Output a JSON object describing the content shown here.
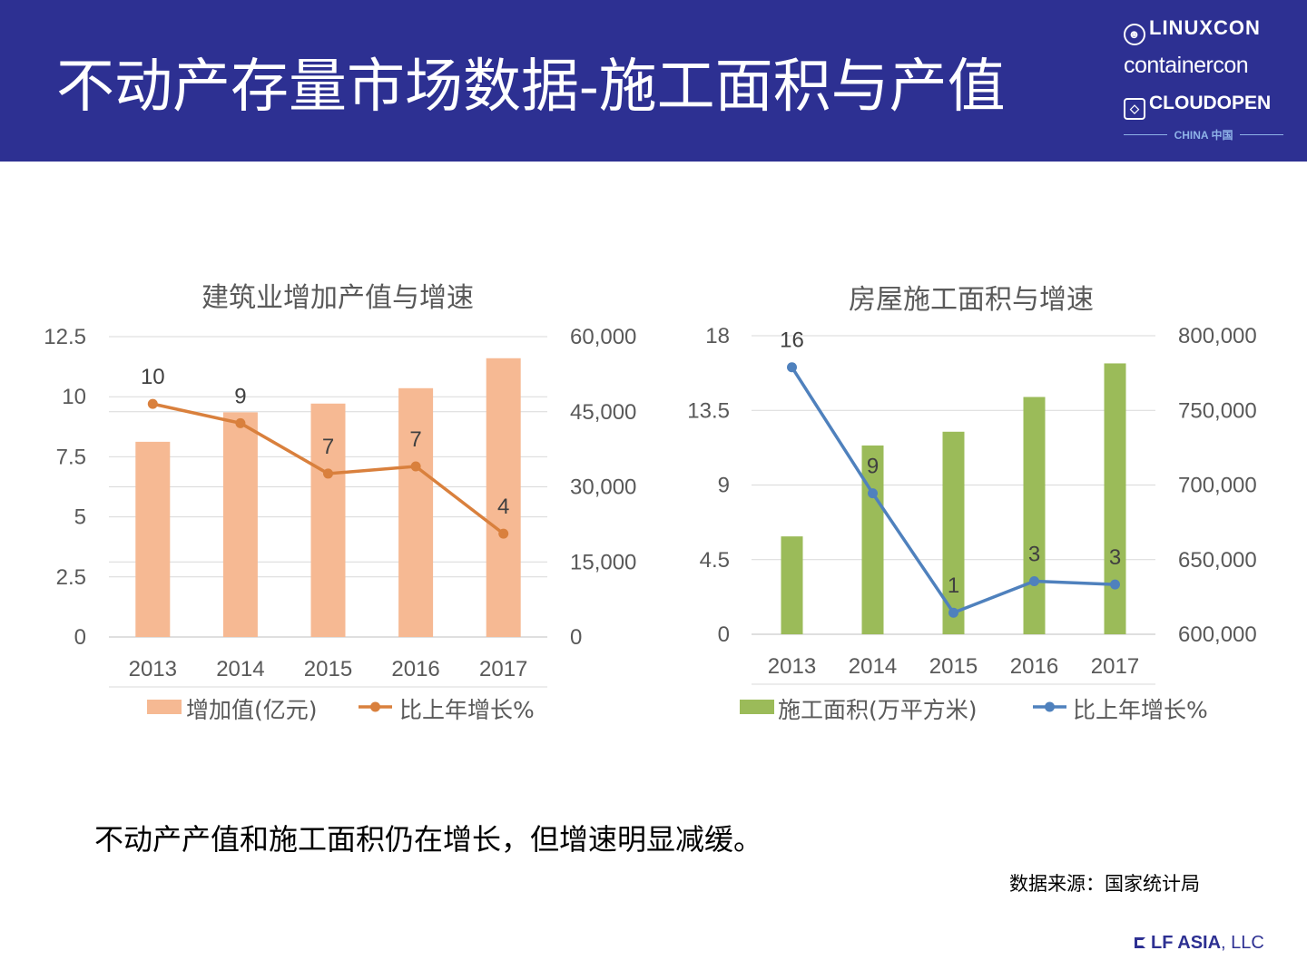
{
  "header": {
    "title": "不动产存量市场数据-施工面积与产值",
    "logos": {
      "linuxcon": "LINUXCON",
      "containercon": "containercon",
      "cloudopen": "CLOUDOPEN",
      "china": "CHINA 中国"
    }
  },
  "caption": "不动产产值和施工面积仍在增长，但增速明显减缓。",
  "source": "数据来源：国家统计局",
  "footer": {
    "brand": "LF ASIA",
    "suffix": ", LLC"
  },
  "colors": {
    "header_bg": "#2d3092",
    "bar_left": "#f6b993",
    "line_left": "#d9803d",
    "bar_right": "#9bbb59",
    "line_right": "#4f81bd"
  },
  "chart_data": [
    {
      "type": "bar+line",
      "title": "建筑业增加产值与增速",
      "categories": [
        "2013",
        "2014",
        "2015",
        "2016",
        "2017"
      ],
      "series": [
        {
          "name": "增加值(亿元)",
          "kind": "bar",
          "axis": "right",
          "values": [
            38995,
            44880,
            46627,
            49703,
            55689
          ]
        },
        {
          "name": "比上年增长%",
          "kind": "line",
          "axis": "left",
          "values": [
            9.7,
            8.9,
            6.8,
            7.1,
            4.3
          ],
          "labels": [
            "10",
            "9",
            "7",
            "7",
            "4"
          ]
        }
      ],
      "y_left": {
        "min": 0,
        "max": 12.5,
        "ticks": [
          "12.5",
          "10",
          "7.5",
          "5",
          "2.5",
          "0"
        ]
      },
      "y_right": {
        "min": 0,
        "max": 60000,
        "ticks": [
          "60,000",
          "45,000",
          "30,000",
          "15,000",
          "0"
        ]
      },
      "legend_position": "bottom"
    },
    {
      "type": "bar+line",
      "title": "房屋施工面积与增速",
      "categories": [
        "2013",
        "2014",
        "2015",
        "2016",
        "2017"
      ],
      "series": [
        {
          "name": "施工面积(万平方米)",
          "kind": "bar",
          "axis": "right",
          "values": [
            665572,
            726482,
            735693,
            758975,
            781484
          ]
        },
        {
          "name": "比上年增长%",
          "kind": "line",
          "axis": "left",
          "values": [
            16.1,
            8.5,
            1.3,
            3.2,
            3.0
          ],
          "labels": [
            "16",
            "9",
            "1",
            "3",
            "3"
          ]
        }
      ],
      "y_left": {
        "min": 0,
        "max": 18,
        "ticks": [
          "18",
          "13.5",
          "9",
          "4.5",
          "0"
        ]
      },
      "y_right": {
        "min": 600000,
        "max": 800000,
        "ticks": [
          "800,000",
          "750,000",
          "700,000",
          "650,000",
          "600,000"
        ]
      },
      "legend_position": "bottom"
    }
  ]
}
